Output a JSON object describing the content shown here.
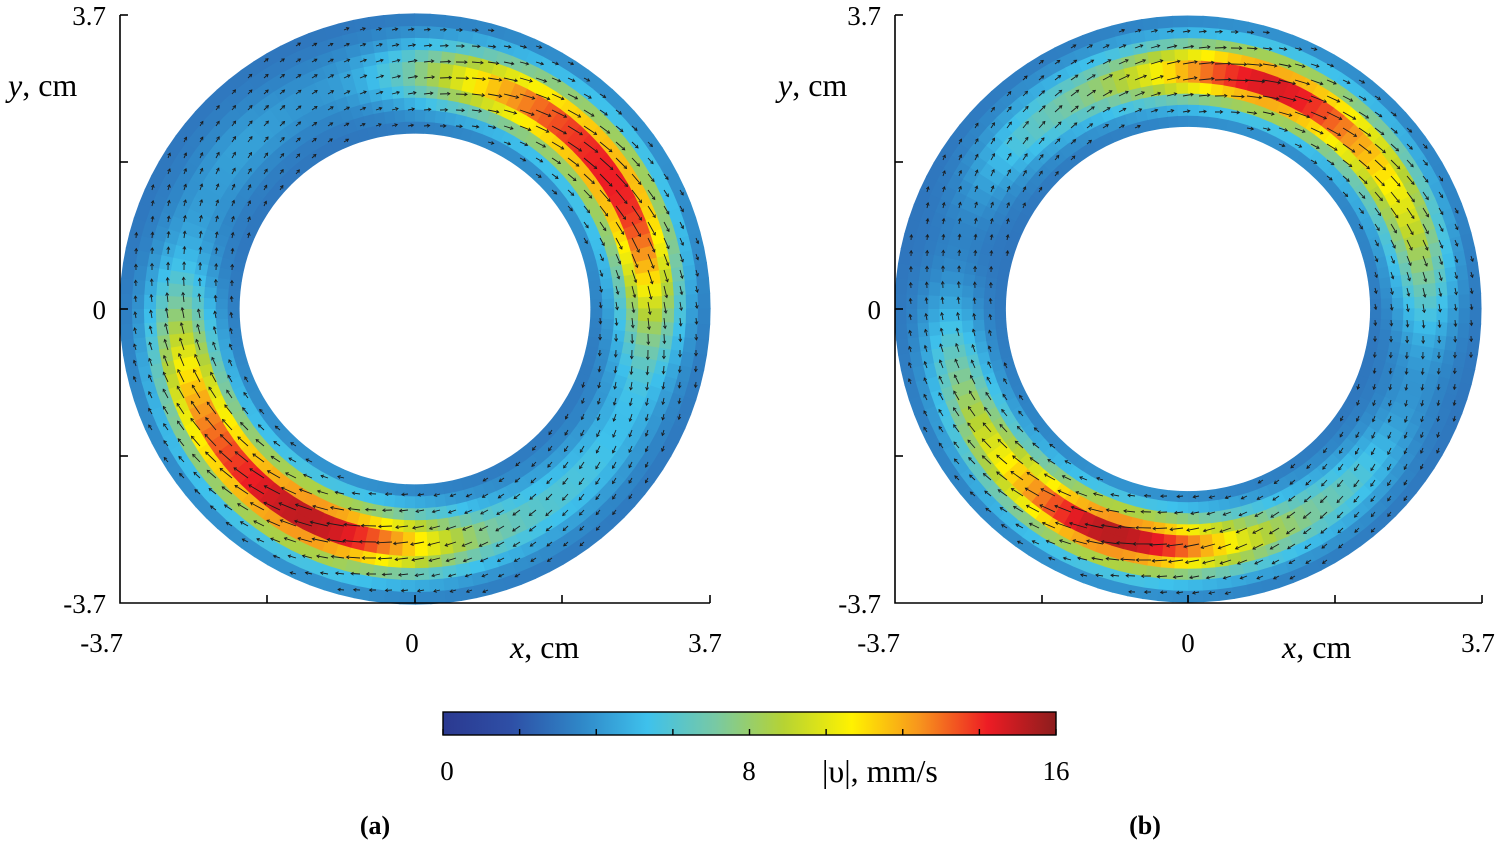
{
  "colors": {
    "colormap": [
      "#2b3990",
      "#2e4fa6",
      "#2f86c7",
      "#3ec1ec",
      "#78c9a4",
      "#b6d333",
      "#fff200",
      "#f7941d",
      "#ed1c24",
      "#8c1d1d"
    ],
    "arrow": "#1a1a1a",
    "axis": "#000000"
  },
  "chart_data": [
    {
      "type": "heatmap",
      "subtype": "annular velocity field with vectors",
      "panel_label": "(a)",
      "xlabel_var": "x",
      "xlabel_unit": ", cm",
      "ylabel_var": "y",
      "ylabel_unit": ", cm",
      "x_ticks": [
        "-3.7",
        "0",
        "3.7"
      ],
      "y_ticks": [
        "3.7",
        "0",
        "-3.7"
      ],
      "xlim": [
        -3.7,
        3.7
      ],
      "ylim": [
        -3.7,
        3.7
      ],
      "inner_radius": 2.2,
      "outer_radius": 3.7,
      "high_speed_lobes": [
        {
          "angle_deg": 40,
          "width_deg": 50,
          "peak": 15
        },
        {
          "angle_deg": 235,
          "width_deg": 55,
          "peak": 15.5
        }
      ],
      "background_speed": 3
    },
    {
      "type": "heatmap",
      "subtype": "annular velocity field with vectors",
      "panel_label": "(b)",
      "xlabel_var": "x",
      "xlabel_unit": ", cm",
      "ylabel_var": "y",
      "ylabel_unit": ", cm",
      "x_ticks": [
        "-3.7",
        "0",
        "3.7"
      ],
      "y_ticks": [
        "3.7",
        "0",
        "-3.7"
      ],
      "xlim": [
        -3.7,
        3.7
      ],
      "ylim": [
        -3.7,
        3.7
      ],
      "inner_radius": 2.3,
      "outer_radius": 3.7,
      "high_speed_lobes": [
        {
          "angle_deg": 65,
          "width_deg": 55,
          "peak": 14.5
        },
        {
          "angle_deg": 250,
          "width_deg": 50,
          "peak": 15
        }
      ],
      "background_speed": 3
    }
  ],
  "colorbar": {
    "min": 0,
    "max": 16,
    "tick_labels": [
      "0",
      "8",
      "16"
    ],
    "tick_values": [
      0,
      8,
      16
    ],
    "minor_tick_values": [
      2,
      4,
      6,
      10,
      12,
      14
    ],
    "label": "|υ|, mm/s"
  }
}
